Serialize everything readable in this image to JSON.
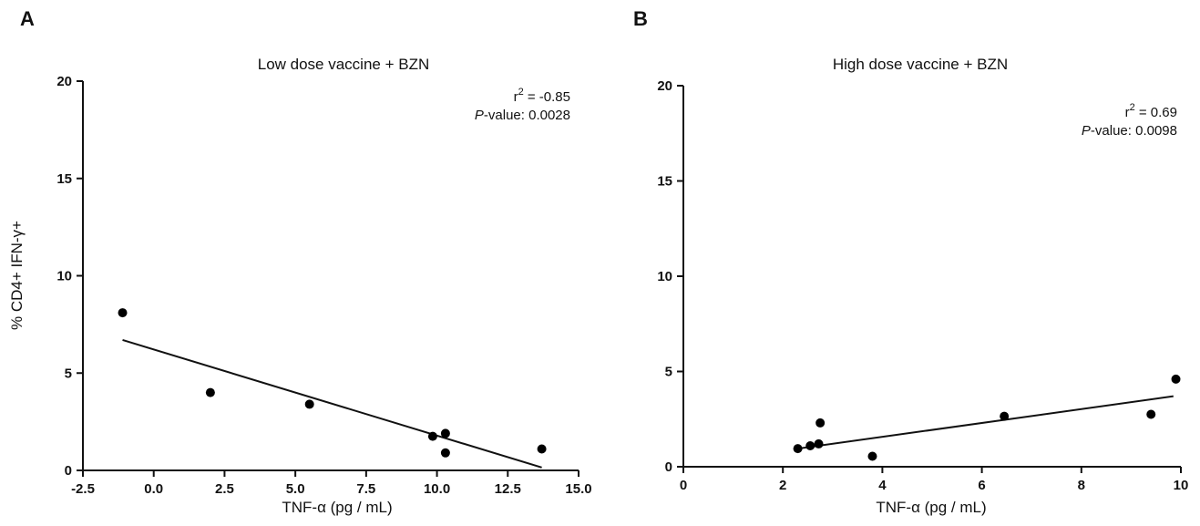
{
  "chart_data": [
    {
      "panel": "A",
      "type": "scatter",
      "title": "Low dose vaccine + BZN",
      "xlabel": "TNF-α (pg / mL)",
      "ylabel": "% CD4+ IFN-γ+",
      "xlim": [
        -2.5,
        15.0
      ],
      "ylim": [
        0,
        20
      ],
      "xticks": [
        -2.5,
        0.0,
        2.5,
        5.0,
        7.5,
        10.0,
        12.5,
        15.0
      ],
      "xtick_labels": [
        "-2.5",
        "0.0",
        "2.5",
        "5.0",
        "7.5",
        "10.0",
        "12.5",
        "15.0"
      ],
      "yticks": [
        0,
        5,
        10,
        15,
        20
      ],
      "ytick_labels": [
        "0",
        "5",
        "10",
        "15",
        "20"
      ],
      "points": [
        {
          "x": -1.1,
          "y": 8.1
        },
        {
          "x": 2.0,
          "y": 4.0
        },
        {
          "x": 5.5,
          "y": 3.4
        },
        {
          "x": 9.85,
          "y": 1.75
        },
        {
          "x": 10.3,
          "y": 1.9
        },
        {
          "x": 10.3,
          "y": 0.9
        },
        {
          "x": 13.7,
          "y": 1.1
        }
      ],
      "fit_line": {
        "x": [
          -1.1,
          13.7
        ],
        "y": [
          6.7,
          0.15
        ]
      },
      "annotation": {
        "r2_label": "r",
        "r2_sup": "2",
        "r2_value": " = -0.85",
        "p_label": "P",
        "p_value": "-value: 0.0028"
      }
    },
    {
      "panel": "B",
      "type": "scatter",
      "title": "High dose vaccine + BZN",
      "xlabel": "TNF-α (pg / mL)",
      "ylabel": "",
      "xlim": [
        0,
        10
      ],
      "ylim": [
        0,
        20
      ],
      "xticks": [
        0,
        2,
        4,
        6,
        8,
        10
      ],
      "xtick_labels": [
        "0",
        "2",
        "4",
        "6",
        "8",
        "10"
      ],
      "yticks": [
        0,
        5,
        10,
        15,
        20
      ],
      "ytick_labels": [
        "0",
        "5",
        "10",
        "15",
        "20"
      ],
      "points": [
        {
          "x": 2.3,
          "y": 0.95
        },
        {
          "x": 2.55,
          "y": 1.1
        },
        {
          "x": 2.72,
          "y": 1.2
        },
        {
          "x": 2.75,
          "y": 2.3
        },
        {
          "x": 3.8,
          "y": 0.55
        },
        {
          "x": 6.45,
          "y": 2.65
        },
        {
          "x": 9.4,
          "y": 2.75
        },
        {
          "x": 9.9,
          "y": 4.6
        }
      ],
      "fit_line": {
        "x": [
          2.3,
          9.85
        ],
        "y": [
          0.95,
          3.7
        ]
      },
      "annotation": {
        "r2_label": "r",
        "r2_sup": "2",
        "r2_value": " = 0.69",
        "p_label": "P",
        "p_value": "-value: 0.0098"
      }
    }
  ]
}
